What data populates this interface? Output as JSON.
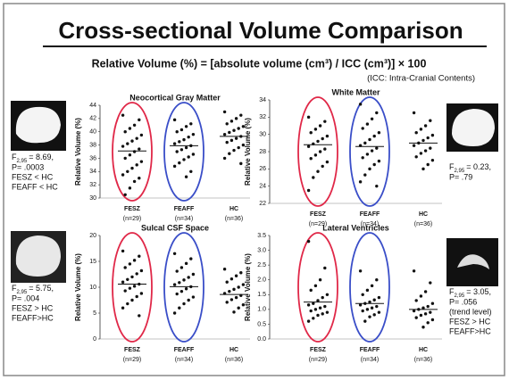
{
  "title": "Cross-sectional Volume Comparison",
  "subtitle": "Relative Volume (%) = [absolute volume (cm³) / ICC (cm³)] × 100",
  "note": "(ICC: Intra-Cranial Contents)",
  "chart_data": [
    {
      "type": "strip",
      "title": "Neocortical Gray Matter",
      "y_label": "Relative Volume (%)",
      "ylim": [
        30,
        44
      ],
      "yticks": [
        30,
        32,
        34,
        36,
        38,
        40,
        42,
        44
      ],
      "groups": [
        {
          "name": "FESZ",
          "n": "(n=29)",
          "ellipse_color": "#e02848",
          "mean": 37.1,
          "values": [
            42.5,
            41.8,
            41,
            40.5,
            40,
            39.5,
            39,
            38.6,
            38.2,
            37.8,
            37.4,
            37,
            36.5,
            36,
            35.5,
            35,
            34.5,
            34,
            33.5,
            33,
            32.5,
            31.5,
            30.5
          ]
        },
        {
          "name": "FEAFF",
          "n": "(n=34)",
          "ellipse_color": "#3a4ec8",
          "mean": 37.9,
          "values": [
            41.8,
            41.2,
            40.8,
            40.3,
            40,
            39.6,
            39.2,
            38.8,
            38.5,
            38.2,
            37.9,
            37.6,
            37.3,
            37,
            36.6,
            36.2,
            35.8,
            35.3,
            34.8,
            34,
            33.2
          ]
        },
        {
          "name": "HC",
          "n": "(n=36)",
          "mean": 39.3,
          "values": [
            43,
            42.5,
            42,
            41.6,
            41.2,
            40.8,
            40.5,
            40.2,
            39.9,
            39.6,
            39.3,
            39,
            38.7,
            38.4,
            38,
            37.6,
            37.2,
            36.7,
            36,
            35.2
          ]
        }
      ]
    },
    {
      "type": "strip",
      "title": "White Matter",
      "y_label": "Relative Volume (%)",
      "ylim": [
        22,
        34
      ],
      "yticks": [
        22,
        24,
        26,
        28,
        30,
        32,
        34
      ],
      "groups": [
        {
          "name": "FESZ",
          "n": "(n=29)",
          "ellipse_color": "#e02848",
          "mean": 28.8,
          "values": [
            32,
            31.5,
            31,
            30.6,
            30.2,
            29.8,
            29.5,
            29.2,
            28.9,
            28.6,
            28.3,
            28,
            27.6,
            27.2,
            26.8,
            26.3,
            25.7,
            25,
            23.5
          ]
        },
        {
          "name": "FEAFF",
          "n": "(n=34)",
          "ellipse_color": "#3a4ec8",
          "mean": 28.6,
          "values": [
            33.5,
            32.5,
            31.8,
            31.2,
            30.7,
            30.2,
            29.8,
            29.4,
            29,
            28.7,
            28.4,
            28.1,
            27.7,
            27.3,
            26.9,
            26.5,
            26,
            25.3,
            24.5,
            24
          ]
        },
        {
          "name": "HC",
          "n": "(n=36)",
          "mean": 29.0,
          "values": [
            32.5,
            31.6,
            31,
            30.6,
            30.2,
            29.9,
            29.6,
            29.3,
            29,
            28.7,
            28.4,
            28.1,
            27.8,
            27.4,
            27,
            26.5,
            26
          ]
        }
      ]
    },
    {
      "type": "strip",
      "title": "Sulcal CSF Space",
      "y_label": "Relative Volume (%)",
      "ylim": [
        0,
        20
      ],
      "yticks": [
        0,
        5,
        10,
        15,
        20
      ],
      "groups": [
        {
          "name": "FESZ",
          "n": "(n=29)",
          "ellipse_color": "#e02848",
          "mean": 10.6,
          "values": [
            17,
            16,
            15.2,
            14.5,
            13.8,
            13.2,
            12.6,
            12,
            11.5,
            11,
            10.6,
            10.2,
            9.8,
            9.3,
            8.8,
            8.2,
            7.5,
            6.8,
            6,
            4.5
          ]
        },
        {
          "name": "FEAFF",
          "n": "(n=34)",
          "ellipse_color": "#3a4ec8",
          "mean": 10.1,
          "values": [
            16.5,
            15.5,
            14.6,
            13.8,
            13.1,
            12.5,
            11.9,
            11.4,
            10.9,
            10.5,
            10.1,
            9.7,
            9.2,
            8.7,
            8.1,
            7.5,
            6.8,
            6,
            5
          ]
        },
        {
          "name": "HC",
          "n": "(n=36)",
          "mean": 8.6,
          "values": [
            13.5,
            12.8,
            12.2,
            11.6,
            11,
            10.5,
            10,
            9.6,
            9.2,
            8.8,
            8.4,
            8,
            7.6,
            7.1,
            6.6,
            6,
            5.2
          ]
        }
      ]
    },
    {
      "type": "strip",
      "title": "Lateral Ventricles",
      "y_label": "Relative Volume (%)",
      "ylim": [
        0,
        3.5
      ],
      "yticks": [
        {
          "value": 0,
          "label": "0.0"
        },
        0.5,
        {
          "value": 1,
          "label": "1.0"
        },
        1.5,
        {
          "value": 2,
          "label": "2.0"
        },
        2.5,
        {
          "value": 3,
          "label": "3.0"
        },
        3.5
      ],
      "groups": [
        {
          "name": "FESZ",
          "n": "(n=29)",
          "ellipse_color": "#e02848",
          "mean": 1.25,
          "values": [
            3.3,
            2.4,
            2,
            1.8,
            1.65,
            1.5,
            1.4,
            1.3,
            1.2,
            1.15,
            1.1,
            1.05,
            1,
            0.95,
            0.9,
            0.85,
            0.8,
            0.7,
            0.6
          ]
        },
        {
          "name": "FEAFF",
          "n": "(n=34)",
          "ellipse_color": "#3a4ec8",
          "mean": 1.2,
          "values": [
            2.3,
            2,
            1.8,
            1.65,
            1.5,
            1.4,
            1.32,
            1.25,
            1.2,
            1.15,
            1.1,
            1.05,
            1,
            0.95,
            0.9,
            0.82,
            0.75,
            0.6
          ]
        },
        {
          "name": "HC",
          "n": "(n=36)",
          "mean": 1.0,
          "values": [
            2.3,
            1.9,
            1.6,
            1.45,
            1.3,
            1.2,
            1.1,
            1.05,
            1,
            0.95,
            0.9,
            0.85,
            0.8,
            0.72,
            0.65,
            0.55,
            0.4
          ]
        }
      ]
    }
  ],
  "stats": [
    {
      "f": "F",
      "sub": "2,95",
      "value": "= 8.69,",
      "lines": [
        "P= .0003",
        "FESZ < HC",
        "FEAFF < HC"
      ]
    },
    {
      "f": "F",
      "sub": "2,95",
      "value": "= 0.23,",
      "lines": [
        "P= .79"
      ]
    },
    {
      "f": "F",
      "sub": "2,95",
      "value": "= 5.75,",
      "lines": [
        "P= .004",
        "FESZ > HC",
        "FEAFF>HC"
      ]
    },
    {
      "f": "F",
      "sub": "2,95",
      "value": "= 3.05,",
      "lines": [
        "P= .056",
        "(trend level)",
        "FESZ > HC",
        "FEAFF>HC"
      ]
    }
  ]
}
